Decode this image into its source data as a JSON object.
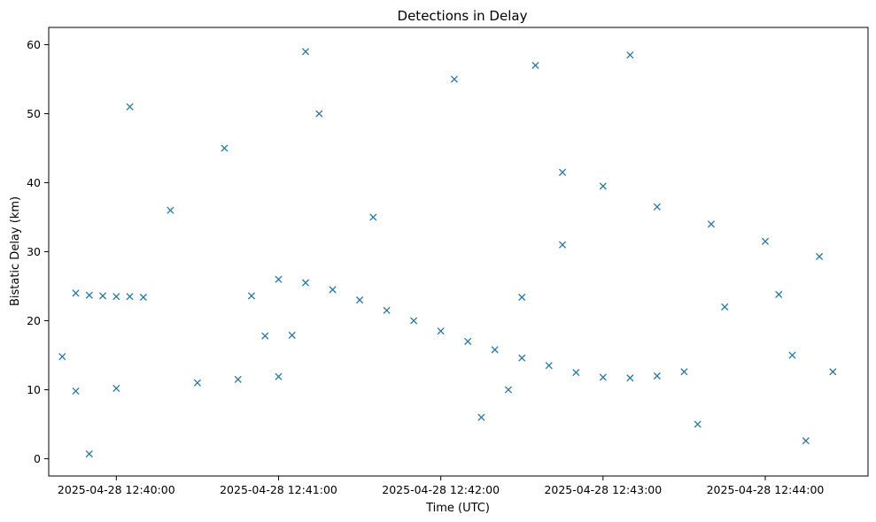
{
  "chart_data": {
    "type": "scatter",
    "title": "Detections in Delay",
    "xlabel": "Time (UTC)",
    "ylabel": "Bistatic Delay (km)",
    "marker": "x",
    "color": "#1f77b4",
    "grid": false,
    "x_unit": "time (UTC)",
    "xlim": [
      "2025-04-28 12:39:35",
      "2025-04-28 12:44:38"
    ],
    "ylim": [
      -2.5,
      62.5
    ],
    "x_ticks": [
      "2025-04-28 12:40:00",
      "2025-04-28 12:41:00",
      "2025-04-28 12:42:00",
      "2025-04-28 12:43:00",
      "2025-04-28 12:44:00"
    ],
    "y_ticks": [
      0,
      10,
      20,
      30,
      40,
      50,
      60
    ],
    "series": [
      {
        "points": [
          [
            "2025-04-28 12:39:45",
            24.0
          ],
          [
            "2025-04-28 12:39:50",
            23.7
          ],
          [
            "2025-04-28 12:39:55",
            23.6
          ],
          [
            "2025-04-28 12:40:00",
            23.5
          ],
          [
            "2025-04-28 12:40:05",
            23.5
          ],
          [
            "2025-04-28 12:40:10",
            23.4
          ],
          [
            "2025-04-28 12:41:00",
            26.0
          ],
          [
            "2025-04-28 12:41:10",
            25.5
          ],
          [
            "2025-04-28 12:41:20",
            24.5
          ],
          [
            "2025-04-28 12:41:30",
            23.0
          ],
          [
            "2025-04-28 12:41:40",
            21.5
          ],
          [
            "2025-04-28 12:41:50",
            20.0
          ],
          [
            "2025-04-28 12:42:00",
            18.5
          ],
          [
            "2025-04-28 12:42:10",
            17.0
          ],
          [
            "2025-04-28 12:42:20",
            15.8
          ],
          [
            "2025-04-28 12:42:30",
            14.6
          ],
          [
            "2025-04-28 12:42:40",
            13.5
          ],
          [
            "2025-04-28 12:42:50",
            12.5
          ],
          [
            "2025-04-28 12:43:00",
            11.8
          ],
          [
            "2025-04-28 12:43:10",
            11.7
          ],
          [
            "2025-04-28 12:43:20",
            12.0
          ],
          [
            "2025-04-28 12:43:30",
            12.6
          ],
          [
            "2025-04-28 12:39:45",
            9.8
          ],
          [
            "2025-04-28 12:40:00",
            10.2
          ],
          [
            "2025-04-28 12:40:30",
            11.0
          ],
          [
            "2025-04-28 12:40:45",
            11.5
          ],
          [
            "2025-04-28 12:41:00",
            11.9
          ],
          [
            "2025-04-28 12:43:00",
            39.5
          ],
          [
            "2025-04-28 12:43:20",
            36.5
          ],
          [
            "2025-04-28 12:43:40",
            34.0
          ],
          [
            "2025-04-28 12:44:00",
            31.5
          ],
          [
            "2025-04-28 12:44:20",
            29.3
          ],
          [
            "2025-04-28 12:40:50",
            23.6
          ],
          [
            "2025-04-28 12:40:55",
            17.8
          ],
          [
            "2025-04-28 12:41:05",
            17.9
          ],
          [
            "2025-04-28 12:42:25",
            10.0
          ],
          [
            "2025-04-28 12:42:30",
            23.4
          ],
          [
            "2025-04-28 12:42:45",
            31.0
          ],
          [
            "2025-04-28 12:42:45",
            41.5
          ],
          [
            "2025-04-28 12:44:05",
            23.8
          ],
          [
            "2025-04-28 12:44:25",
            12.6
          ],
          [
            "2025-04-28 12:40:05",
            51.0
          ],
          [
            "2025-04-28 12:41:10",
            59.0
          ],
          [
            "2025-04-28 12:42:05",
            55.0
          ],
          [
            "2025-04-28 12:43:10",
            58.5
          ],
          [
            "2025-04-28 12:44:15",
            2.6
          ],
          [
            "2025-04-28 12:39:50",
            0.7
          ],
          [
            "2025-04-28 12:40:40",
            45.0
          ],
          [
            "2025-04-28 12:41:35",
            35.0
          ],
          [
            "2025-04-28 12:42:15",
            6.0
          ],
          [
            "2025-04-28 12:43:45",
            22.0
          ],
          [
            "2025-04-28 12:44:10",
            15.0
          ],
          [
            "2025-04-28 12:39:40",
            14.8
          ],
          [
            "2025-04-28 12:40:20",
            36.0
          ],
          [
            "2025-04-28 12:41:15",
            50.0
          ],
          [
            "2025-04-28 12:42:35",
            57.0
          ],
          [
            "2025-04-28 12:43:35",
            5.0
          ]
        ]
      }
    ]
  }
}
